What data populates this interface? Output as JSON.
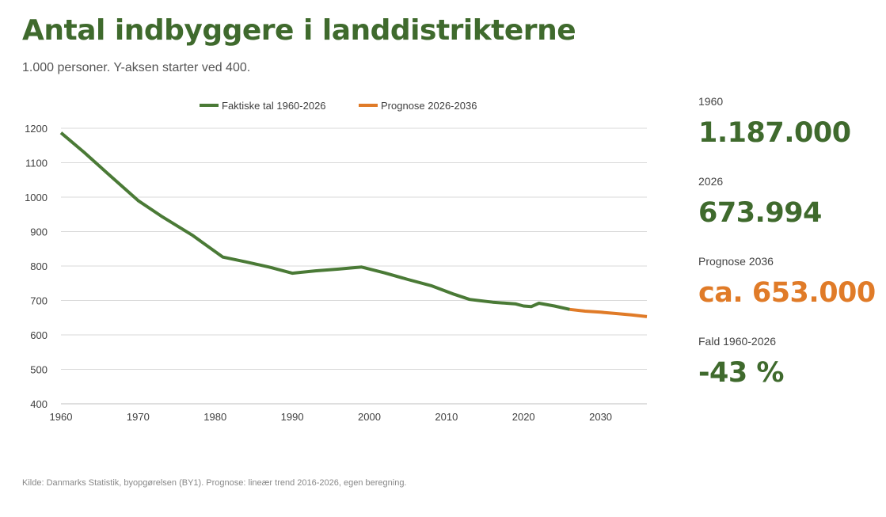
{
  "header": {
    "title": "Antal indbyggere i landdistrikterne",
    "subtitle": "1.000 personer. Y-aksen starter ved 400."
  },
  "colors": {
    "actual": "#4a7a36",
    "forecast": "#e07b28",
    "title": "#3f6a2d",
    "grid": "#d9d9d9"
  },
  "chart_data": {
    "type": "line",
    "legend_placement": "top-center",
    "grid": true,
    "xlim": [
      1960,
      2036
    ],
    "ylim": [
      400,
      1200
    ],
    "x_ticks": [
      1960,
      1970,
      1980,
      1990,
      2000,
      2010,
      2020,
      2030
    ],
    "y_ticks": [
      400,
      500,
      600,
      700,
      800,
      900,
      1000,
      1100,
      1200
    ],
    "series": [
      {
        "name": "Faktiske tal 1960-2026",
        "color": "#4a7a36",
        "x": [
          1960,
          1963,
          1966,
          1970,
          1973,
          1977,
          1981,
          1984,
          1987,
          1990,
          1993,
          1996,
          1999,
          2002,
          2005,
          2008,
          2011,
          2013,
          2016,
          2019,
          2020,
          2021,
          2022,
          2024,
          2026
        ],
        "y": [
          1187,
          1130,
          1070,
          990,
          945,
          890,
          826,
          812,
          797,
          779,
          786,
          791,
          797,
          780,
          761,
          743,
          718,
          703,
          695,
          690,
          684,
          682,
          692,
          684,
          674
        ]
      },
      {
        "name": "Prognose 2026-2036",
        "color": "#e07b28",
        "x": [
          2026,
          2028,
          2030,
          2032,
          2034,
          2036
        ],
        "y": [
          674,
          669,
          666,
          662,
          658,
          653
        ]
      }
    ]
  },
  "kpis": [
    {
      "label": "1960",
      "value": "1.187.000",
      "color": "#3f6a2d"
    },
    {
      "label": "2026",
      "value": "673.994",
      "color": "#3f6a2d"
    },
    {
      "label": "Prognose 2036",
      "value": "ca. 653.000",
      "color": "#e07b28"
    },
    {
      "label": "Fald 1960-2026",
      "value": "-43 %",
      "color": "#3f6a2d"
    }
  ],
  "footer": {
    "source": "Kilde: Danmarks Statistik, byopgørelsen (BY1). Prognose: lineær trend 2016-2026, egen beregning."
  }
}
